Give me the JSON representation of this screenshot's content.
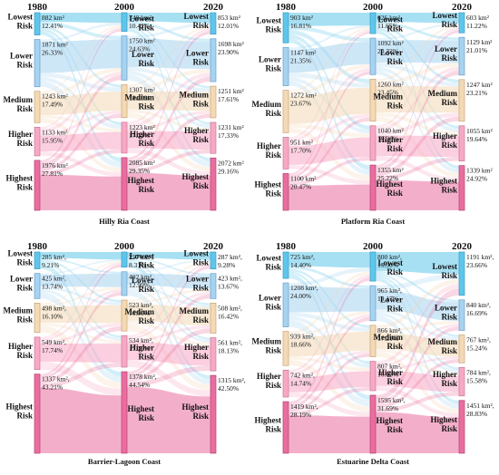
{
  "figure": {
    "years": [
      "1980",
      "2000",
      "2020"
    ],
    "unit": "km²",
    "risk_levels": [
      {
        "label": "Lowest Risk",
        "color": "#5ec6ea"
      },
      {
        "label": "Lower Risk",
        "color": "#a6d3f0"
      },
      {
        "label": "Medium Risk",
        "color": "#f3d9b4"
      },
      {
        "label": "Higher Risk",
        "color": "#f7a8c4"
      },
      {
        "label": "Highest Risk",
        "color": "#e96e9f"
      }
    ]
  },
  "chart_data": [
    {
      "type": "sankey",
      "title": "Hilly Ria Coast",
      "columns": [
        "1980",
        "2000",
        "2020"
      ],
      "categories": [
        "Lowest Risk",
        "Lower Risk",
        "Medium Risk",
        "Higher Risk",
        "Highest Risk"
      ],
      "values": [
        {
          "area": [
            "882 km²",
            "1871 km²",
            "1243 km²",
            "1133 km²",
            "1976 km²"
          ],
          "pct": [
            "12.41%",
            "26.33%",
            "17.49%",
            "15.95%",
            "27.81%"
          ]
        },
        {
          "area": [
            "740 km²",
            "1750 km²",
            "1307 km²",
            "1223 km²",
            "2085 km²"
          ],
          "pct": [
            "10.42%",
            "24.63%",
            "18.40%",
            "17.21%",
            "29.35%"
          ]
        },
        {
          "area": [
            "853 km²",
            "1698 km²",
            "1251 km²",
            "1231 km²",
            "2072 km²"
          ],
          "pct": [
            "12.01%",
            "23.90%",
            "17.61%",
            "17.33%",
            "29.16%"
          ]
        }
      ]
    },
    {
      "type": "sankey",
      "title": "Platform Ria Coast",
      "columns": [
        "1980",
        "2000",
        "2020"
      ],
      "categories": [
        "Lowest Risk",
        "Lower Risk",
        "Medium Risk",
        "Higher Risk",
        "Highest Risk"
      ],
      "values": [
        {
          "area": [
            "903 km²",
            "1147 km²",
            "1272 km²",
            "951 km²",
            "1100 km²"
          ],
          "pct": [
            "16.81%",
            "21.35%",
            "23.67%",
            "17.70%",
            "20.47%"
          ]
        },
        {
          "area": [
            "626 km²",
            "1092 km²",
            "1260 km²",
            "1040 km²",
            "1355 km²"
          ],
          "pct": [
            "11.65%",
            "20.32%",
            "23.45%",
            "19.36%",
            "25.22%"
          ]
        },
        {
          "area": [
            "603 km²",
            "1129 km²",
            "1247 km²",
            "1055 km²",
            "1339 km²"
          ],
          "pct": [
            "11.22%",
            "21.01%",
            "23.21%",
            "19.64%",
            "24.92%"
          ]
        }
      ]
    },
    {
      "type": "sankey",
      "title": "Barrier-Lagoon Coast",
      "columns": [
        "1980",
        "2000",
        "2020"
      ],
      "categories": [
        "Lowest Risk",
        "Lower Risk",
        "Medium Risk",
        "Higher Risk",
        "Highest Risk"
      ],
      "values": [
        {
          "area": [
            "285 km²,",
            "425 km²,",
            "498 km²,",
            "549 km²,",
            "1337 km²,"
          ],
          "pct": [
            "9.21%",
            "13.74%",
            "16.10%",
            "17.74%",
            "43.21%"
          ]
        },
        {
          "area": [
            "257 km²,",
            "402 km²,",
            "523 km²,",
            "534 km²,",
            "1378 km²,"
          ],
          "pct": [
            "8.31%",
            "12.99%",
            "16.90%",
            "17.26%",
            "44.54%"
          ]
        },
        {
          "area": [
            "287 km²,",
            "423 km²,",
            "508 km²,",
            "561 km²,",
            "1315 km²,"
          ],
          "pct": [
            "9.28%",
            "13.67%",
            "16.42%",
            "18.13%",
            "42.50%"
          ]
        }
      ]
    },
    {
      "type": "sankey",
      "title": "Estuarine Delta Coast",
      "columns": [
        "1980",
        "2000",
        "2020"
      ],
      "categories": [
        "Lowest Risk",
        "Lower Risk",
        "Medium Risk",
        "Higher Risk",
        "Highest Risk"
      ],
      "values": [
        {
          "area": [
            "725 km²,",
            "1208 km²,",
            "939 km²,",
            "742 km²,",
            "1419 km²,"
          ],
          "pct": [
            "14.40%",
            "24.00%",
            "18.66%",
            "14.74%",
            "28.19%"
          ]
        },
        {
          "area": [
            "800 km²,",
            "965 km²,",
            "866 km²,",
            "807 km²,",
            "1595 km²,"
          ],
          "pct": [
            "15.90%",
            "19.17%",
            "17.21%",
            "16.03%",
            "31.69%"
          ]
        },
        {
          "area": [
            "1191 km²,",
            "840 km²,",
            "767 km²,",
            "784 km²,",
            "1451 km²,"
          ],
          "pct": [
            "23.66%",
            "16.69%",
            "15.24%",
            "15.58%",
            "28.83%"
          ]
        }
      ]
    }
  ]
}
